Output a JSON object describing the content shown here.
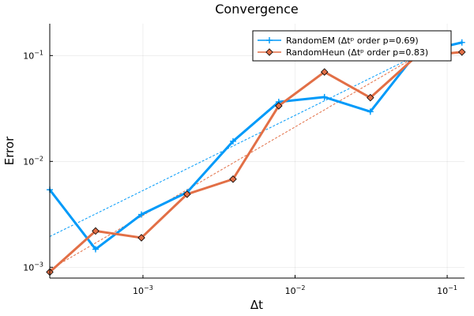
{
  "chart_data": {
    "type": "line",
    "title": "Convergence",
    "xlabel": "Δt",
    "ylabel": "Error",
    "xscale": "log",
    "yscale": "log",
    "xlim": [
      0.000244,
      0.13
    ],
    "ylim": [
      0.00079,
      0.2
    ],
    "grid": true,
    "legend_position": "top-right",
    "x_ticks": [
      {
        "value": 0.001,
        "base": "10",
        "exp": "−3"
      },
      {
        "value": 0.01,
        "base": "10",
        "exp": "−2"
      },
      {
        "value": 0.1,
        "base": "10",
        "exp": "−1"
      }
    ],
    "y_ticks": [
      {
        "value": 0.001,
        "base": "10",
        "exp": "−3"
      },
      {
        "value": 0.01,
        "base": "10",
        "exp": "−2"
      },
      {
        "value": 0.1,
        "base": "10",
        "exp": "−1"
      }
    ],
    "x": [
      0.000244,
      0.000488,
      0.000977,
      0.00195,
      0.00391,
      0.00781,
      0.0156,
      0.03125,
      0.0625,
      0.125
    ],
    "series": [
      {
        "name": "RandomEM (Δtᵖ order p=0.69)",
        "color": "#009af9",
        "marker": "cross",
        "values": [
          0.0054,
          0.00148,
          0.00315,
          0.0051,
          0.0155,
          0.0365,
          0.0405,
          0.0295,
          0.105,
          0.133
        ],
        "fit": {
          "x": [
            0.000244,
            0.0625
          ],
          "y": [
            0.00195,
            0.1
          ]
        }
      },
      {
        "name": "RandomHeun (Δtᵖ order p=0.83)",
        "color": "#e26f46",
        "marker": "diamond",
        "values": [
          0.0009,
          0.0022,
          0.0019,
          0.0049,
          0.0068,
          0.0335,
          0.07,
          0.04,
          0.098,
          0.108
        ],
        "fit": {
          "x": [
            0.000244,
            0.0625
          ],
          "y": [
            0.00095,
            0.098
          ]
        }
      }
    ]
  }
}
